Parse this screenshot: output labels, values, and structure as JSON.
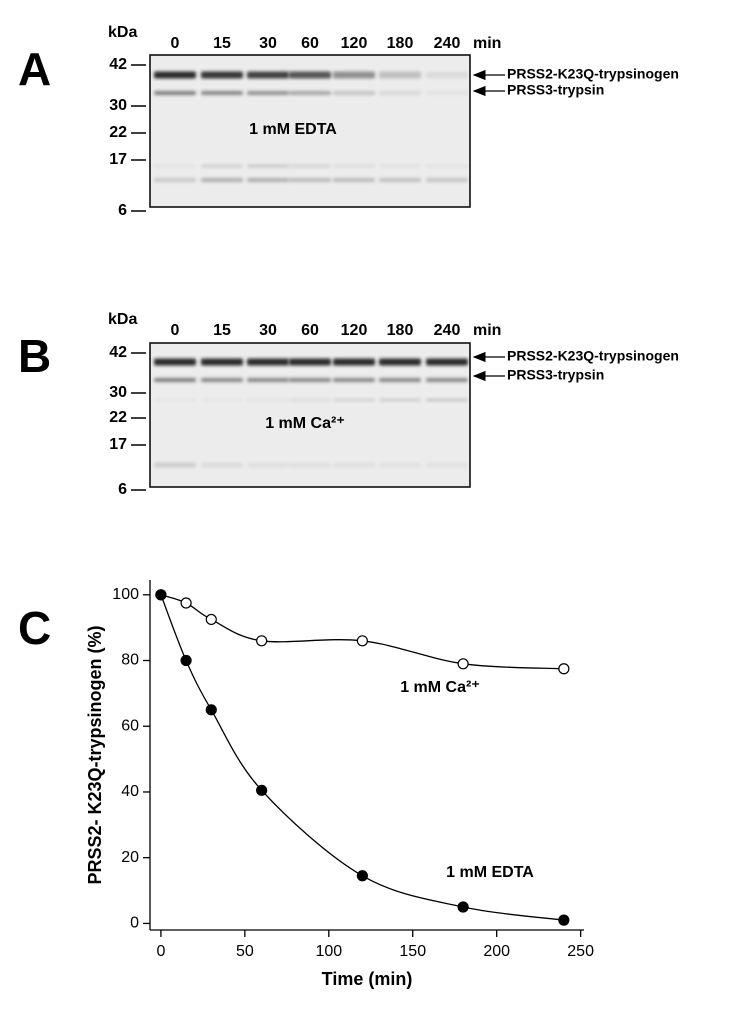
{
  "panels": [
    {
      "letter": "A",
      "unit": "kDa",
      "lanes": [
        "0",
        "15",
        "30",
        "60",
        "120",
        "180",
        "240"
      ],
      "lane_unit": "min",
      "markers": [
        "42",
        "30",
        "22",
        "17",
        "6"
      ],
      "bands": [
        "PRSS2-K23Q-trypsinogen",
        "PRSS3-trypsin"
      ],
      "condition": "1 mM EDTA"
    },
    {
      "letter": "B",
      "unit": "kDa",
      "lanes": [
        "0",
        "15",
        "30",
        "60",
        "120",
        "180",
        "240"
      ],
      "lane_unit": "min",
      "markers": [
        "42",
        "30",
        "22",
        "17",
        "6"
      ],
      "bands": [
        "PRSS2-K23Q-trypsinogen",
        "PRSS3-trypsin"
      ],
      "condition": "1 mM Ca²⁺"
    }
  ],
  "chart_data": {
    "type": "scatter",
    "letter": "C",
    "x_label": "Time (min)",
    "y_label": "PRSS2- K23Q-trypsinogen (%)",
    "xlim": [
      -6.5,
      252
    ],
    "ylim": [
      -2,
      104.5
    ],
    "xticks": [
      0,
      50,
      100,
      150,
      200,
      250
    ],
    "yticks": [
      0,
      20,
      40,
      60,
      80,
      100
    ],
    "series": [
      {
        "name": "1 mM Ca²⁺",
        "color": "#000000",
        "filled": false,
        "x": [
          0,
          15,
          30,
          60,
          120,
          180,
          240
        ],
        "values": [
          100,
          97.5,
          92.5,
          86,
          86,
          79,
          77.5
        ]
      },
      {
        "name": "1 mM EDTA",
        "color": "#000000",
        "filled": true,
        "x": [
          0,
          15,
          30,
          60,
          120,
          180,
          240
        ],
        "values": [
          100,
          80,
          65,
          40.5,
          14.5,
          5,
          1
        ]
      }
    ]
  }
}
